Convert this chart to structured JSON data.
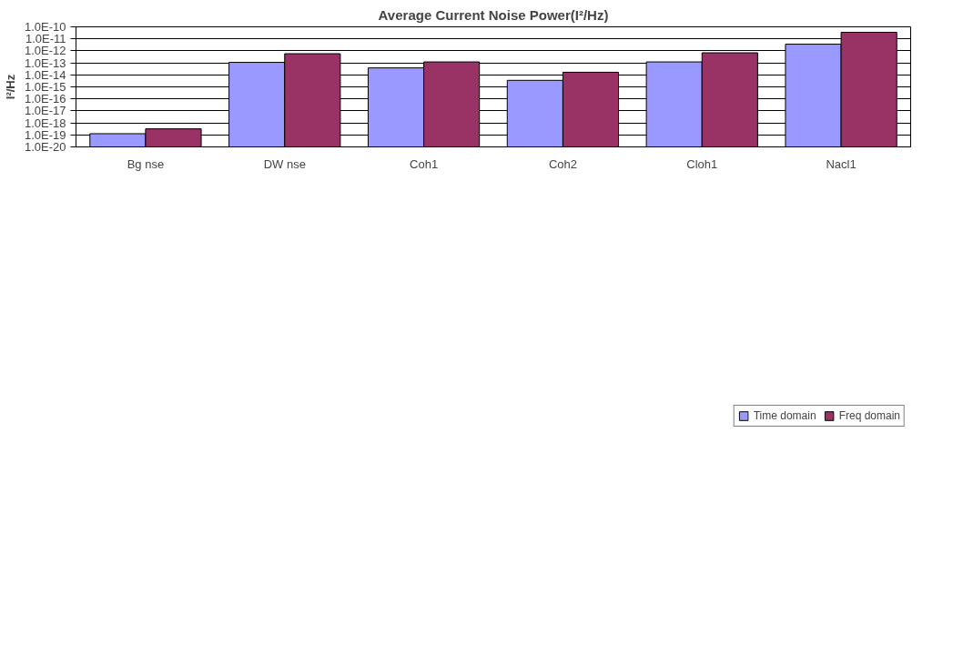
{
  "chart_data": {
    "type": "bar",
    "title": "Average Current Noise Power(I²/Hz)",
    "ylabel": "I²/Hz",
    "categories": [
      "Bg nse",
      "DW nse",
      "Coh1",
      "Coh2",
      "Cloh1",
      "Nacl1"
    ],
    "series": [
      {
        "name": "Time domain",
        "color": "#9999ff",
        "values": [
          1.26e-19,
          1.1e-13,
          3.8e-14,
          3.5e-15,
          1.2e-13,
          3.6e-12
        ]
      },
      {
        "name": "Freq domain",
        "color": "#993366",
        "values": [
          3.2e-19,
          5.8e-13,
          1.2e-13,
          1.65e-14,
          6.9e-13,
          3.5e-11
        ]
      }
    ],
    "log": true,
    "ylim": [
      1e-20,
      1e-10
    ],
    "yticks": [
      {
        "value": 1e-20,
        "label": "1.0E-20"
      },
      {
        "value": 1e-19,
        "label": "1.0E-19"
      },
      {
        "value": 1e-18,
        "label": "1.0E-18"
      },
      {
        "value": 1e-17,
        "label": "1.0E-17"
      },
      {
        "value": 1e-16,
        "label": "1.0E-16"
      },
      {
        "value": 1e-15,
        "label": "1.0E-15"
      },
      {
        "value": 1e-14,
        "label": "1.0E-14"
      },
      {
        "value": 1e-13,
        "label": "1.0E-13"
      },
      {
        "value": 1e-12,
        "label": "1.0E-12"
      },
      {
        "value": 1e-11,
        "label": "1.0E-11"
      },
      {
        "value": 1e-10,
        "label": "1.0E-10"
      }
    ],
    "grid": "y",
    "legend": "bottom"
  }
}
